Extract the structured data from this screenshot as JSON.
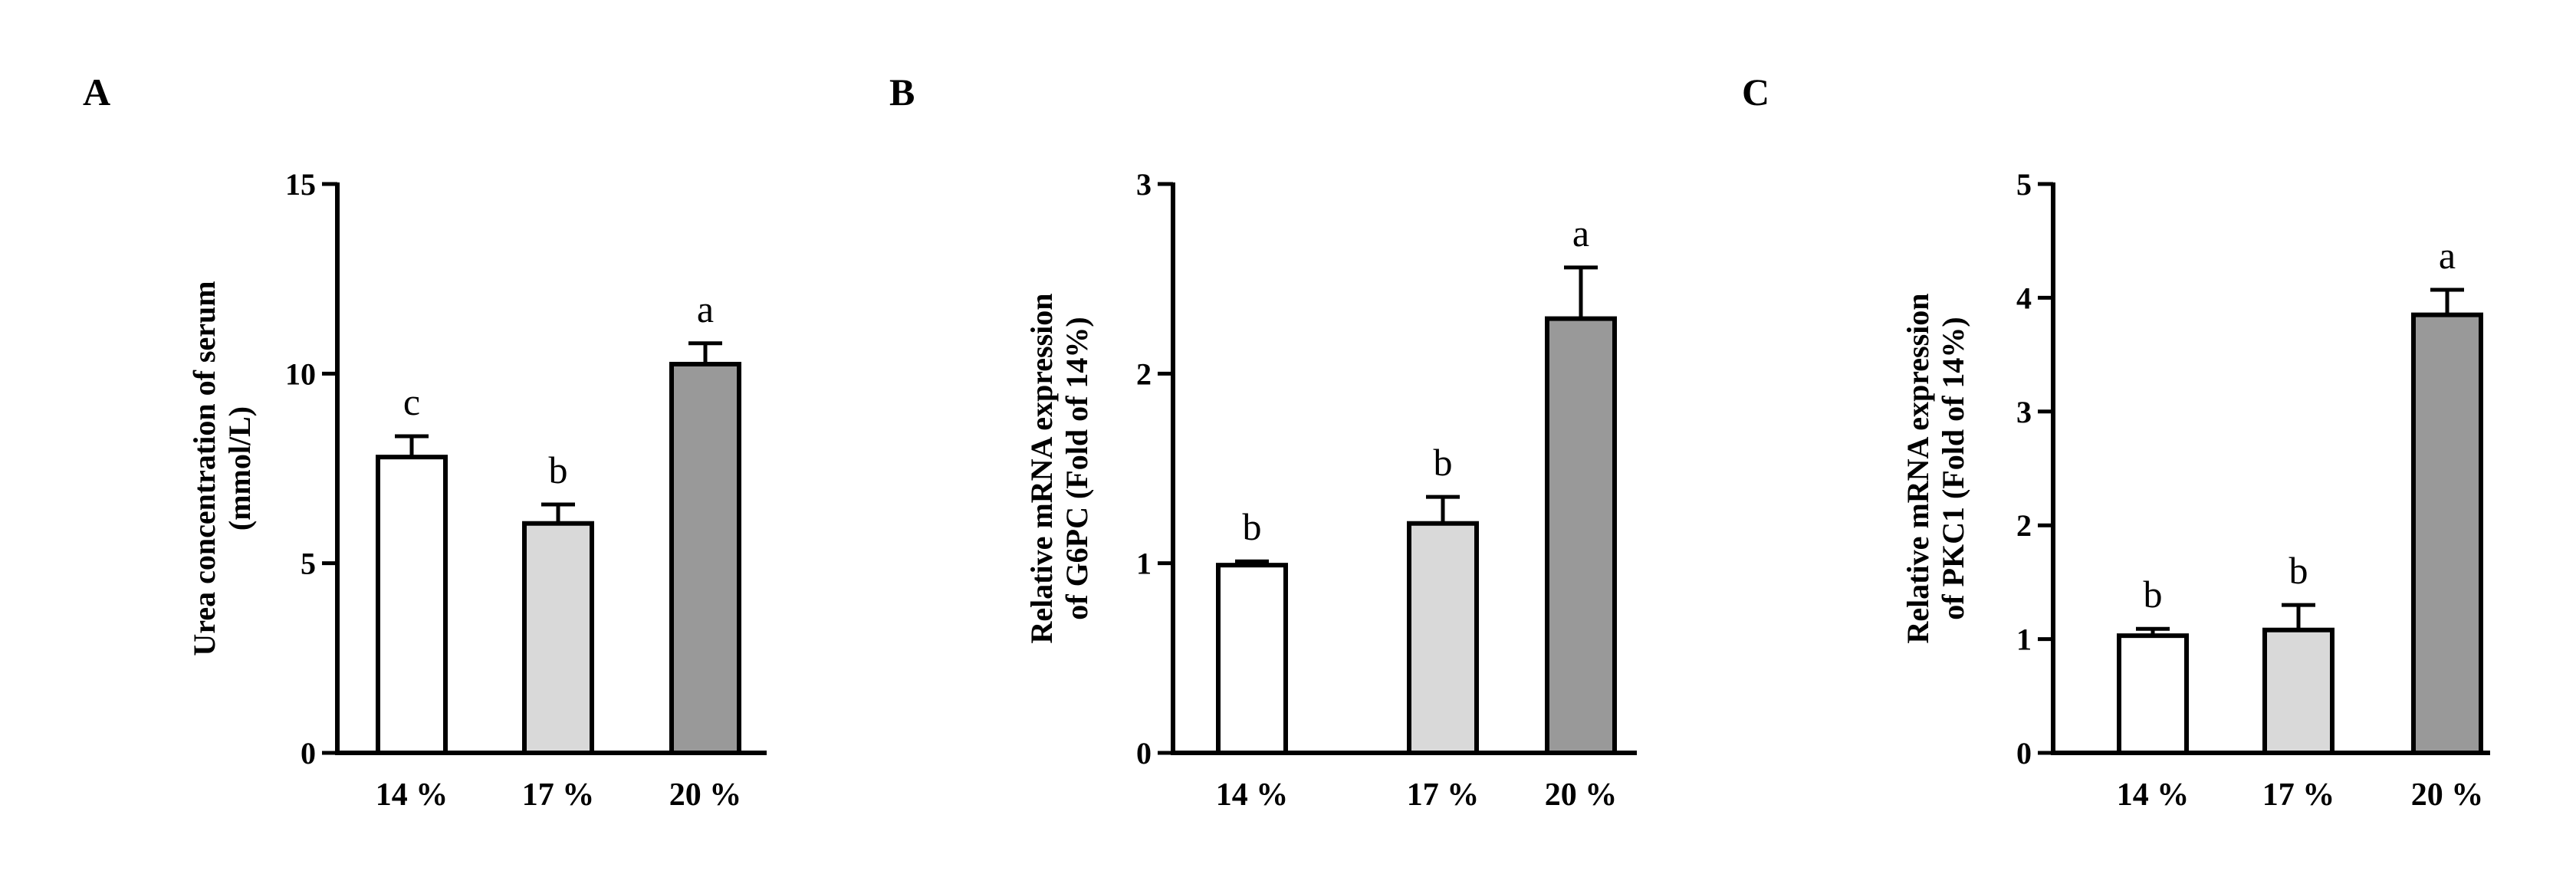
{
  "panels": [
    {
      "letter": "A",
      "ylabel_lines": [
        "Urea concentration of serum",
        "(mmol/L)"
      ],
      "ylim": [
        0,
        15
      ],
      "yticks": [
        0,
        5,
        10,
        15
      ]
    },
    {
      "letter": "B",
      "ylabel_lines": [
        "Relative mRNA expression",
        "of  G6PC (Fold of 14%)"
      ],
      "ylim": [
        0,
        3
      ],
      "yticks": [
        0,
        1,
        2,
        3
      ]
    },
    {
      "letter": "C",
      "ylabel_lines": [
        "Relative mRNA expression",
        "of  PKC1 (Fold of 14%)"
      ],
      "ylim": [
        0,
        5
      ],
      "yticks": [
        0,
        1,
        2,
        3,
        4,
        5
      ]
    }
  ],
  "colors": {
    "bar_14": "#ffffff",
    "bar_17": "#d9d9d9",
    "bar_20": "#999999",
    "axis": "#000000"
  },
  "chart_data": [
    {
      "type": "bar",
      "title": "",
      "xlabel": "",
      "ylabel": "Urea concentration of serum (mmol/L)",
      "ylim": [
        0,
        15
      ],
      "categories": [
        "14 %",
        "17 %",
        "20 %"
      ],
      "values": [
        7.8,
        6.05,
        10.25
      ],
      "errors": [
        0.55,
        0.5,
        0.55
      ],
      "significance": [
        "c",
        "b",
        "a"
      ]
    },
    {
      "type": "bar",
      "title": "",
      "xlabel": "",
      "ylabel": "Relative mRNA expression of  G6PC (Fold of 14%)",
      "ylim": [
        0,
        3
      ],
      "categories": [
        "14 %",
        "17 %",
        "20 %"
      ],
      "values": [
        0.99,
        1.21,
        2.29
      ],
      "errors": [
        0.02,
        0.14,
        0.27
      ],
      "significance": [
        "b",
        "b",
        "a"
      ]
    },
    {
      "type": "bar",
      "title": "",
      "xlabel": "",
      "ylabel": "Relative mRNA expression of  PKC1 (Fold of 14%)",
      "ylim": [
        0,
        5
      ],
      "categories": [
        "14 %",
        "17 %",
        "20 %"
      ],
      "values": [
        1.03,
        1.08,
        3.85
      ],
      "errors": [
        0.06,
        0.22,
        0.22
      ],
      "significance": [
        "b",
        "b",
        "a"
      ]
    }
  ]
}
